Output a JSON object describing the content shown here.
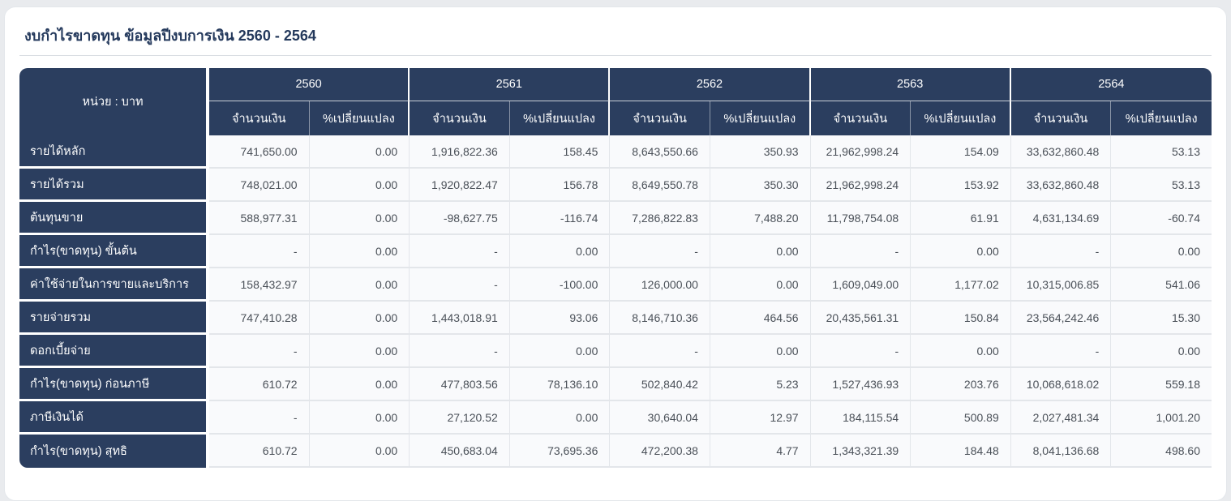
{
  "page": {
    "title": "งบกำไรขาดทุน ข้อมูลปีงบการเงิน 2560 - 2564"
  },
  "table": {
    "unit_label": "หน่วย : บาท",
    "amount_label": "จำนวนเงิน",
    "change_label": "%เปลี่ยนแปลง",
    "years": [
      "2560",
      "2561",
      "2562",
      "2563",
      "2564"
    ],
    "rows": [
      {
        "label": "รายได้หลัก",
        "values": [
          "741,650.00",
          "0.00",
          "1,916,822.36",
          "158.45",
          "8,643,550.66",
          "350.93",
          "21,962,998.24",
          "154.09",
          "33,632,860.48",
          "53.13"
        ]
      },
      {
        "label": "รายได้รวม",
        "values": [
          "748,021.00",
          "0.00",
          "1,920,822.47",
          "156.78",
          "8,649,550.78",
          "350.30",
          "21,962,998.24",
          "153.92",
          "33,632,860.48",
          "53.13"
        ]
      },
      {
        "label": "ต้นทุนขาย",
        "values": [
          "588,977.31",
          "0.00",
          "-98,627.75",
          "-116.74",
          "7,286,822.83",
          "7,488.20",
          "11,798,754.08",
          "61.91",
          "4,631,134.69",
          "-60.74"
        ]
      },
      {
        "label": "กำไร(ขาดทุน) ขั้นต้น",
        "values": [
          "-",
          "0.00",
          "-",
          "0.00",
          "-",
          "0.00",
          "-",
          "0.00",
          "-",
          "0.00"
        ]
      },
      {
        "label": "ค่าใช้จ่ายในการขายและบริการ",
        "values": [
          "158,432.97",
          "0.00",
          "-",
          "-100.00",
          "126,000.00",
          "0.00",
          "1,609,049.00",
          "1,177.02",
          "10,315,006.85",
          "541.06"
        ]
      },
      {
        "label": "รายจ่ายรวม",
        "values": [
          "747,410.28",
          "0.00",
          "1,443,018.91",
          "93.06",
          "8,146,710.36",
          "464.56",
          "20,435,561.31",
          "150.84",
          "23,564,242.46",
          "15.30"
        ]
      },
      {
        "label": "ดอกเบี้ยจ่าย",
        "values": [
          "-",
          "0.00",
          "-",
          "0.00",
          "-",
          "0.00",
          "-",
          "0.00",
          "-",
          "0.00"
        ]
      },
      {
        "label": "กำไร(ขาดทุน) ก่อนภาษี",
        "values": [
          "610.72",
          "0.00",
          "477,803.56",
          "78,136.10",
          "502,840.42",
          "5.23",
          "1,527,436.93",
          "203.76",
          "10,068,618.02",
          "559.18"
        ]
      },
      {
        "label": "ภาษีเงินได้",
        "values": [
          "-",
          "0.00",
          "27,120.52",
          "0.00",
          "30,640.04",
          "12.97",
          "184,115.54",
          "500.89",
          "2,027,481.34",
          "1,001.20"
        ]
      },
      {
        "label": "กำไร(ขาดทุน) สุทธิ",
        "values": [
          "610.72",
          "0.00",
          "450,683.04",
          "73,695.36",
          "472,200.38",
          "4.77",
          "1,343,321.39",
          "184.48",
          "8,041,136.68",
          "498.60"
        ]
      }
    ]
  },
  "colors": {
    "page_background": "#e9ebee",
    "card_background": "#ffffff",
    "card_border": "#e4e7eb",
    "header_background": "#2b3e5f",
    "title_text": "#24395c",
    "cell_background": "#f9fafc",
    "cell_border": "#e3e6ea",
    "cell_text": "#4a5058"
  }
}
